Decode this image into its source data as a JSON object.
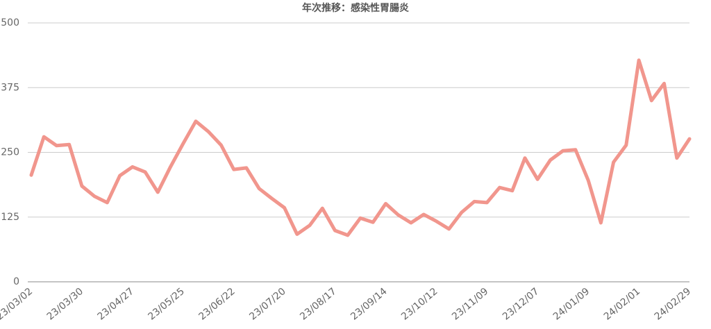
{
  "chart_data": {
    "type": "line",
    "title": "年次推移：感染性胃腸炎",
    "categories": [
      "23/03/02",
      null,
      null,
      null,
      "23/03/30",
      null,
      null,
      null,
      "23/04/27",
      null,
      null,
      null,
      "23/05/25",
      null,
      null,
      null,
      "23/06/22",
      null,
      null,
      null,
      "23/07/20",
      null,
      null,
      null,
      "23/08/17",
      null,
      null,
      null,
      "23/09/14",
      null,
      null,
      null,
      "23/10/12",
      null,
      null,
      null,
      "23/11/09",
      null,
      null,
      null,
      "23/12/07",
      null,
      null,
      null,
      "24/01/09",
      null,
      null,
      null,
      "24/02/01",
      null,
      null,
      null,
      "24/02/29"
    ],
    "values": [
      206,
      280,
      263,
      265,
      185,
      165,
      153,
      205,
      222,
      212,
      173,
      222,
      267,
      310,
      290,
      264,
      217,
      220,
      180,
      161,
      143,
      92,
      109,
      142,
      99,
      90,
      123,
      115,
      151,
      129,
      114,
      130,
      117,
      102,
      134,
      155,
      153,
      182,
      176,
      239,
      198,
      235,
      253,
      255,
      196,
      114,
      231,
      264,
      428,
      350,
      383,
      239,
      276
    ],
    "color": "#f1968d",
    "ylim": [
      0,
      500
    ],
    "yticks": [
      0,
      125,
      250,
      375,
      500
    ],
    "grid": true
  }
}
